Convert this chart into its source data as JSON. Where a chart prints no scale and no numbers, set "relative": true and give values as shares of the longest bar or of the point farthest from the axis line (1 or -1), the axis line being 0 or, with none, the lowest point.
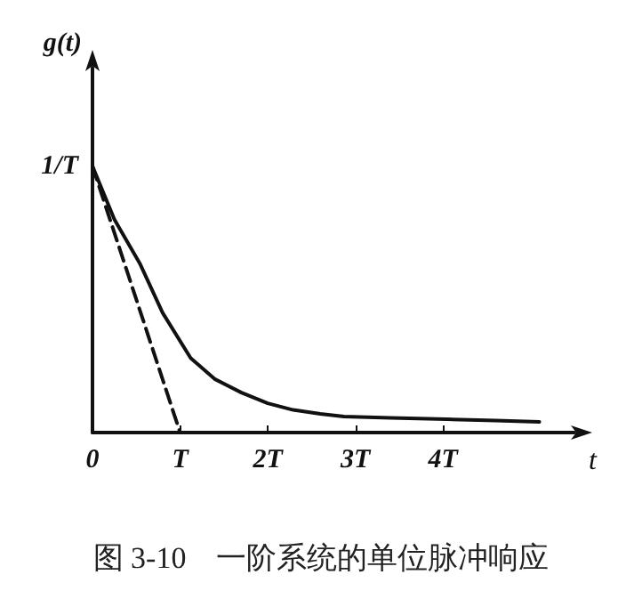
{
  "chart_data": {
    "type": "line",
    "title": "图 3-10　一阶系统的单位脉冲响应",
    "xlabel": "t",
    "ylabel": "g(t)",
    "xlim": [
      0,
      5.5
    ],
    "relative": true,
    "annotations": [
      {
        "text": "1/T",
        "x": 0,
        "y": 1
      }
    ],
    "xticks": [
      0,
      {
        "value": 1,
        "label": "T"
      },
      {
        "value": 2,
        "label": "2T"
      },
      {
        "value": 3,
        "label": "3T"
      },
      {
        "value": 4,
        "label": "4T"
      }
    ],
    "series": [
      {
        "color": "#111111",
        "line_style": "solid",
        "x": [
          0,
          0.25,
          0.54,
          0.8,
          1.12,
          1.4,
          1.7,
          2.0,
          2.29,
          2.6,
          2.87,
          3.4,
          4.04,
          4.6,
          5.1
        ],
        "values": [
          1,
          0.8,
          0.635,
          0.45,
          0.28,
          0.2,
          0.15,
          0.11,
          0.085,
          0.07,
          0.06,
          0.055,
          0.05,
          0.045,
          0.04
        ]
      },
      {
        "color": "#111111",
        "line_style": "dashed",
        "x": [
          0,
          1
        ],
        "values": [
          1,
          0
        ]
      }
    ]
  }
}
